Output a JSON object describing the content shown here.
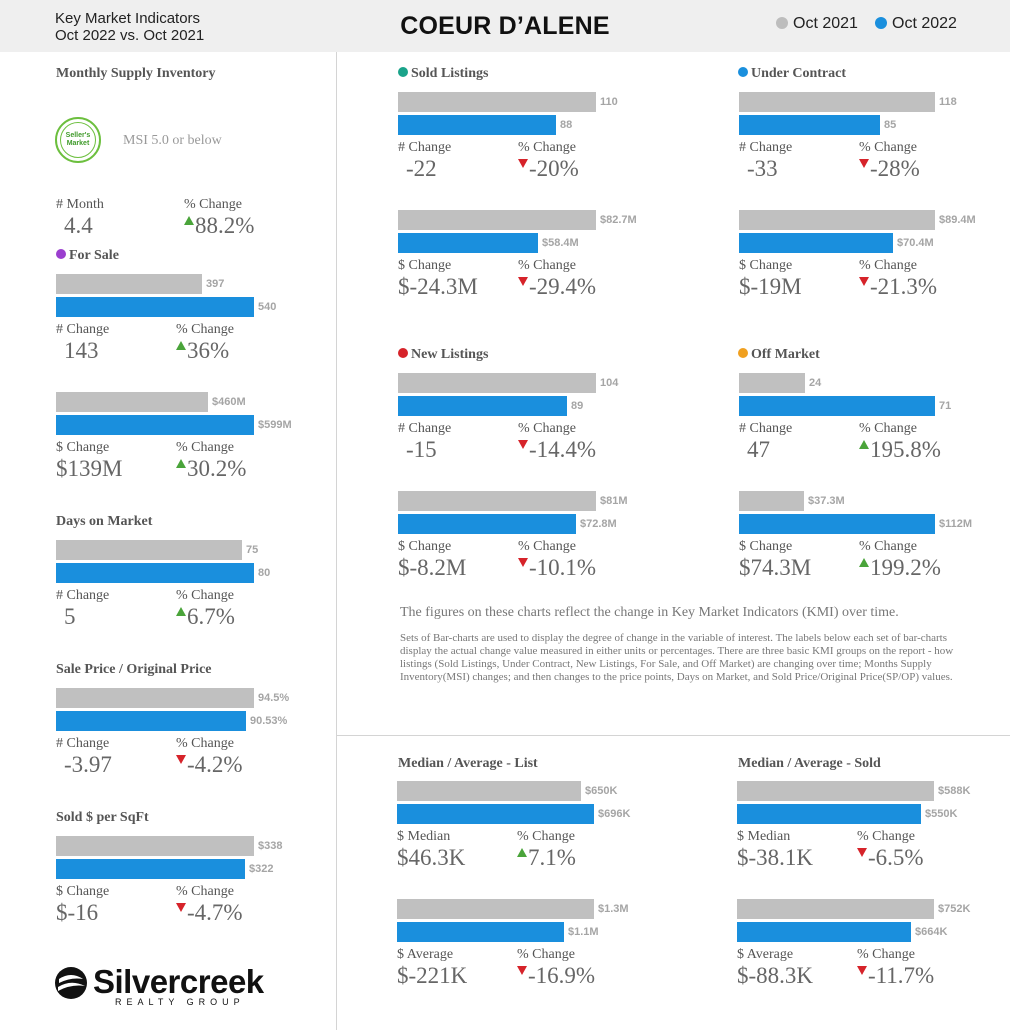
{
  "header": {
    "subtitle_line1": "Key Market Indicators",
    "subtitle_line2": "Oct 2022 vs. Oct 2021",
    "title": "COEUR D’ALENE",
    "legend": [
      {
        "label": "Oct 2021",
        "color": "#bdbdbd"
      },
      {
        "label": "Oct 2022",
        "color": "#1a8fdd"
      }
    ]
  },
  "msi": {
    "title": "Monthly Supply Inventory",
    "badge_line1": "Seller's",
    "badge_line2": "Market",
    "note": "MSI 5.0 or below",
    "month_label": "# Month",
    "month_value": "4.4",
    "pct_label": "% Change",
    "pct_value": "88.2%"
  },
  "sections": {
    "for_sale": {
      "title": "For Sale",
      "dot_color": "#9b3fcf"
    },
    "days_on_market": {
      "title": "Days on Market"
    },
    "sp_op": {
      "title": "Sale Price / Original Price"
    },
    "sold_per_sqft": {
      "title": "Sold $ per SqFt"
    },
    "sold_listings": {
      "title": "Sold Listings",
      "dot_color": "#1aa38a"
    },
    "under_contract": {
      "title": "Under Contract",
      "dot_color": "#1a8fdd"
    },
    "new_listings": {
      "title": "New Listings",
      "dot_color": "#d6232a"
    },
    "off_market": {
      "title": "Off Market",
      "dot_color": "#f0a020"
    },
    "med_avg_list": {
      "title": "Median / Average - List"
    },
    "med_avg_sold": {
      "title": "Median / Average - Sold"
    }
  },
  "chart_data": [
    {
      "id": "for_sale_count",
      "type": "bar",
      "series": [
        {
          "name": "Oct 2021",
          "value": 397,
          "label": "397"
        },
        {
          "name": "Oct 2022",
          "value": 540,
          "label": "540"
        }
      ],
      "change_label": "# Change",
      "change_value": "143",
      "pct_label": "% Change",
      "pct_value": "36%",
      "direction": "up"
    },
    {
      "id": "for_sale_dollar",
      "type": "bar",
      "series": [
        {
          "name": "Oct 2021",
          "value": 460,
          "label": "$460M"
        },
        {
          "name": "Oct 2022",
          "value": 599,
          "label": "$599M"
        }
      ],
      "change_label": "$ Change",
      "change_value": "$139M",
      "pct_label": "% Change",
      "pct_value": "30.2%",
      "direction": "up"
    },
    {
      "id": "days_on_market",
      "type": "bar",
      "series": [
        {
          "name": "Oct 2021",
          "value": 75,
          "label": "75"
        },
        {
          "name": "Oct 2022",
          "value": 80,
          "label": "80"
        }
      ],
      "change_label": "# Change",
      "change_value": "5",
      "pct_label": "% Change",
      "pct_value": "6.7%",
      "direction": "up"
    },
    {
      "id": "sp_op",
      "type": "bar",
      "series": [
        {
          "name": "Oct 2021",
          "value": 94.5,
          "label": "94.5%"
        },
        {
          "name": "Oct 2022",
          "value": 90.53,
          "label": "90.53%"
        }
      ],
      "change_label": "# Change",
      "change_value": "-3.97",
      "pct_label": "% Change",
      "pct_value": "-4.2%",
      "direction": "down"
    },
    {
      "id": "sold_per_sqft",
      "type": "bar",
      "series": [
        {
          "name": "Oct 2021",
          "value": 338,
          "label": "$338"
        },
        {
          "name": "Oct 2022",
          "value": 322,
          "label": "$322"
        }
      ],
      "change_label": "$ Change",
      "change_value": "$-16",
      "pct_label": "% Change",
      "pct_value": "-4.7%",
      "direction": "down"
    },
    {
      "id": "sold_listings_count",
      "type": "bar",
      "series": [
        {
          "name": "Oct 2021",
          "value": 110,
          "label": "110"
        },
        {
          "name": "Oct 2022",
          "value": 88,
          "label": "88"
        }
      ],
      "change_label": "# Change",
      "change_value": "-22",
      "pct_label": "% Change",
      "pct_value": "-20%",
      "direction": "down"
    },
    {
      "id": "sold_listings_dollar",
      "type": "bar",
      "series": [
        {
          "name": "Oct 2021",
          "value": 82.7,
          "label": "$82.7M"
        },
        {
          "name": "Oct 2022",
          "value": 58.4,
          "label": "$58.4M"
        }
      ],
      "change_label": "$ Change",
      "change_value": "$-24.3M",
      "pct_label": "% Change",
      "pct_value": "-29.4%",
      "direction": "down"
    },
    {
      "id": "under_contract_count",
      "type": "bar",
      "series": [
        {
          "name": "Oct 2021",
          "value": 118,
          "label": "118"
        },
        {
          "name": "Oct 2022",
          "value": 85,
          "label": "85"
        }
      ],
      "change_label": "# Change",
      "change_value": "-33",
      "pct_label": "% Change",
      "pct_value": "-28%",
      "direction": "down"
    },
    {
      "id": "under_contract_dollar",
      "type": "bar",
      "series": [
        {
          "name": "Oct 2021",
          "value": 89.4,
          "label": "$89.4M"
        },
        {
          "name": "Oct 2022",
          "value": 70.4,
          "label": "$70.4M"
        }
      ],
      "change_label": "$ Change",
      "change_value": "$-19M",
      "pct_label": "% Change",
      "pct_value": "-21.3%",
      "direction": "down"
    },
    {
      "id": "new_listings_count",
      "type": "bar",
      "series": [
        {
          "name": "Oct 2021",
          "value": 104,
          "label": "104"
        },
        {
          "name": "Oct 2022",
          "value": 89,
          "label": "89"
        }
      ],
      "change_label": "# Change",
      "change_value": "-15",
      "pct_label": "% Change",
      "pct_value": "-14.4%",
      "direction": "down"
    },
    {
      "id": "new_listings_dollar",
      "type": "bar",
      "series": [
        {
          "name": "Oct 2021",
          "value": 81,
          "label": "$81M"
        },
        {
          "name": "Oct 2022",
          "value": 72.8,
          "label": "$72.8M"
        }
      ],
      "change_label": "$ Change",
      "change_value": "$-8.2M",
      "pct_label": "% Change",
      "pct_value": "-10.1%",
      "direction": "down"
    },
    {
      "id": "off_market_count",
      "type": "bar",
      "series": [
        {
          "name": "Oct 2021",
          "value": 24,
          "label": "24"
        },
        {
          "name": "Oct 2022",
          "value": 71,
          "label": "71"
        }
      ],
      "change_label": "# Change",
      "change_value": "47",
      "pct_label": "% Change",
      "pct_value": "195.8%",
      "direction": "up"
    },
    {
      "id": "off_market_dollar",
      "type": "bar",
      "series": [
        {
          "name": "Oct 2021",
          "value": 37.3,
          "label": "$37.3M"
        },
        {
          "name": "Oct 2022",
          "value": 112,
          "label": "$112M"
        }
      ],
      "change_label": "$ Change",
      "change_value": "$74.3M",
      "pct_label": "% Change",
      "pct_value": "199.2%",
      "direction": "up"
    },
    {
      "id": "list_median",
      "type": "bar",
      "series": [
        {
          "name": "Oct 2021",
          "value": 650,
          "label": "$650K"
        },
        {
          "name": "Oct 2022",
          "value": 696,
          "label": "$696K"
        }
      ],
      "change_label": "$ Median",
      "change_value": "$46.3K",
      "pct_label": "% Change",
      "pct_value": "7.1%",
      "direction": "up"
    },
    {
      "id": "list_average",
      "type": "bar",
      "series": [
        {
          "name": "Oct 2021",
          "value": 1300,
          "label": "$1.3M"
        },
        {
          "name": "Oct 2022",
          "value": 1100,
          "label": "$1.1M"
        }
      ],
      "change_label": "$ Average",
      "change_value": "$-221K",
      "pct_label": "% Change",
      "pct_value": "-16.9%",
      "direction": "down"
    },
    {
      "id": "sold_median",
      "type": "bar",
      "series": [
        {
          "name": "Oct 2021",
          "value": 588,
          "label": "$588K"
        },
        {
          "name": "Oct 2022",
          "value": 550,
          "label": "$550K"
        }
      ],
      "change_label": "$ Median",
      "change_value": "$-38.1K",
      "pct_label": "% Change",
      "pct_value": "-6.5%",
      "direction": "down"
    },
    {
      "id": "sold_average",
      "type": "bar",
      "series": [
        {
          "name": "Oct 2021",
          "value": 752,
          "label": "$752K"
        },
        {
          "name": "Oct 2022",
          "value": 664,
          "label": "$664K"
        }
      ],
      "change_label": "$ Average",
      "change_value": "$-88.3K",
      "pct_label": "% Change",
      "pct_value": "-11.7%",
      "direction": "down"
    }
  ],
  "footnote": {
    "line1": "The figures on these charts reflect the change in Key Market Indicators (KMI) over time.",
    "line2": "Sets of Bar-charts are used to display the degree of change in the variable of interest. The labels below each set of bar-charts display the actual change value measured in either units or percentages. There are three basic KMI groups on the report - how listings (Sold Listings, Under Contract, New Listings, For Sale, and Off Market) are changing over time; Months Supply Inventory(MSI) changes; and then changes to the price points, Days on Market, and Sold Price/Original Price(SP/OP) values."
  },
  "logo": {
    "name": "Silvercreek",
    "sub": "REALTY GROUP"
  }
}
